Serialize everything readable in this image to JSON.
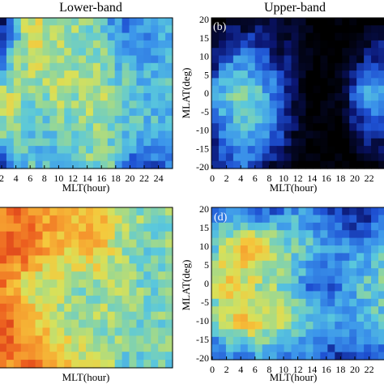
{
  "chart_data": [
    {
      "type": "heatmap",
      "id": "a",
      "panel_label": "",
      "title": "Lower-band",
      "xlabel": "MLT(hour)",
      "ylabel": "",
      "xlim": [
        0,
        24
      ],
      "ylim": [
        -20,
        20
      ],
      "x_ticks": [
        "2",
        "4",
        "6",
        "8",
        "10",
        "12",
        "14",
        "16",
        "18",
        "20",
        "22",
        "24"
      ],
      "y_ticks": [],
      "anchors": [
        [
          0.05,
          0.3,
          0.65,
          0.62,
          0.58,
          0.55,
          0.52,
          0.5,
          0.35,
          0.3,
          0.35,
          0.4,
          0.45
        ],
        [
          0.2,
          0.5,
          0.62,
          0.62,
          0.6,
          0.58,
          0.55,
          0.55,
          0.45,
          0.4,
          0.4,
          0.4,
          0.45
        ],
        [
          0.62,
          0.6,
          0.52,
          0.55,
          0.6,
          0.58,
          0.55,
          0.58,
          0.55,
          0.5,
          0.45,
          0.45,
          0.45
        ],
        [
          0.55,
          0.58,
          0.45,
          0.45,
          0.5,
          0.52,
          0.55,
          0.55,
          0.5,
          0.48,
          0.45,
          0.45,
          0.45
        ],
        [
          0.1,
          0.3,
          0.5,
          0.45,
          0.45,
          0.48,
          0.52,
          0.52,
          0.48,
          0.28,
          0.22,
          0.25,
          0.3
        ]
      ]
    },
    {
      "type": "heatmap",
      "id": "b",
      "panel_label": "(b)",
      "title": "Upper-band",
      "xlabel": "MLT(hour)",
      "ylabel": "MLAT(deg)",
      "xlim": [
        0,
        24
      ],
      "ylim": [
        -20,
        20
      ],
      "x_ticks": [
        "0",
        "2",
        "4",
        "6",
        "8",
        "10",
        "12",
        "14",
        "16",
        "18",
        "20",
        "22"
      ],
      "y_ticks": [
        "-20",
        "-15",
        "-10",
        "-5",
        "0",
        "5",
        "10",
        "15",
        "20"
      ],
      "anchors": [
        [
          0.0,
          0.0,
          0.0,
          0.0,
          0.05,
          0.1,
          0.05,
          0.0,
          0.0,
          0.0,
          0.0,
          0.0,
          0.0
        ],
        [
          0.05,
          0.25,
          0.35,
          0.3,
          0.2,
          0.1,
          0.05,
          0.0,
          0.0,
          0.0,
          0.05,
          0.15,
          0.2
        ],
        [
          0.35,
          0.5,
          0.55,
          0.5,
          0.4,
          0.2,
          0.05,
          0.0,
          0.0,
          0.05,
          0.3,
          0.45,
          0.4
        ],
        [
          0.2,
          0.35,
          0.45,
          0.45,
          0.35,
          0.2,
          0.05,
          0.0,
          0.0,
          0.0,
          0.1,
          0.2,
          0.2
        ],
        [
          0.05,
          0.2,
          0.3,
          0.25,
          0.1,
          0.05,
          0.0,
          0.0,
          0.0,
          0.0,
          0.0,
          0.0,
          0.0
        ]
      ]
    },
    {
      "type": "heatmap",
      "id": "c",
      "panel_label": "",
      "title": "",
      "xlabel": "MLT(hour)",
      "ylabel": "",
      "xlim": [
        0,
        24
      ],
      "ylim": [
        -20,
        20
      ],
      "x_ticks": [],
      "y_ticks": [],
      "anchors": [
        [
          0.8,
          0.85,
          0.82,
          0.82,
          0.78,
          0.75,
          0.78,
          0.75,
          0.62,
          0.55,
          0.55,
          0.55,
          0.55
        ],
        [
          0.88,
          0.92,
          0.88,
          0.78,
          0.72,
          0.7,
          0.72,
          0.72,
          0.62,
          0.55,
          0.52,
          0.52,
          0.55
        ],
        [
          0.85,
          0.75,
          0.62,
          0.6,
          0.6,
          0.58,
          0.55,
          0.58,
          0.58,
          0.55,
          0.52,
          0.52,
          0.55
        ],
        [
          0.88,
          0.88,
          0.8,
          0.7,
          0.62,
          0.58,
          0.55,
          0.55,
          0.55,
          0.52,
          0.52,
          0.52,
          0.55
        ],
        [
          0.8,
          0.85,
          0.85,
          0.82,
          0.78,
          0.7,
          0.62,
          0.6,
          0.55,
          0.5,
          0.5,
          0.52,
          0.52
        ]
      ]
    },
    {
      "type": "heatmap",
      "id": "d",
      "panel_label": "(d)",
      "title": "",
      "xlabel": "MLT(hour)",
      "ylabel": "MLAT(deg)",
      "xlim": [
        0,
        24
      ],
      "ylim": [
        -20,
        20
      ],
      "x_ticks": [
        "0",
        "2",
        "4",
        "6",
        "8",
        "10",
        "12",
        "14",
        "16",
        "18",
        "20",
        "22"
      ],
      "y_ticks": [
        "-20",
        "-15",
        "-10",
        "-5",
        "0",
        "5",
        "10",
        "15",
        "20"
      ],
      "anchors": [
        [
          0.25,
          0.35,
          0.3,
          0.25,
          0.22,
          0.3,
          0.4,
          0.3,
          0.25,
          0.15,
          0.12,
          0.15,
          0.2
        ],
        [
          0.45,
          0.6,
          0.7,
          0.72,
          0.65,
          0.55,
          0.5,
          0.48,
          0.4,
          0.35,
          0.35,
          0.4,
          0.45
        ],
        [
          0.55,
          0.7,
          0.65,
          0.58,
          0.55,
          0.5,
          0.45,
          0.25,
          0.25,
          0.35,
          0.45,
          0.5,
          0.5
        ],
        [
          0.5,
          0.6,
          0.7,
          0.7,
          0.65,
          0.58,
          0.52,
          0.5,
          0.45,
          0.4,
          0.42,
          0.45,
          0.45
        ],
        [
          0.2,
          0.3,
          0.35,
          0.35,
          0.4,
          0.35,
          0.32,
          0.3,
          0.2,
          0.18,
          0.2,
          0.25,
          0.3
        ]
      ]
    }
  ]
}
